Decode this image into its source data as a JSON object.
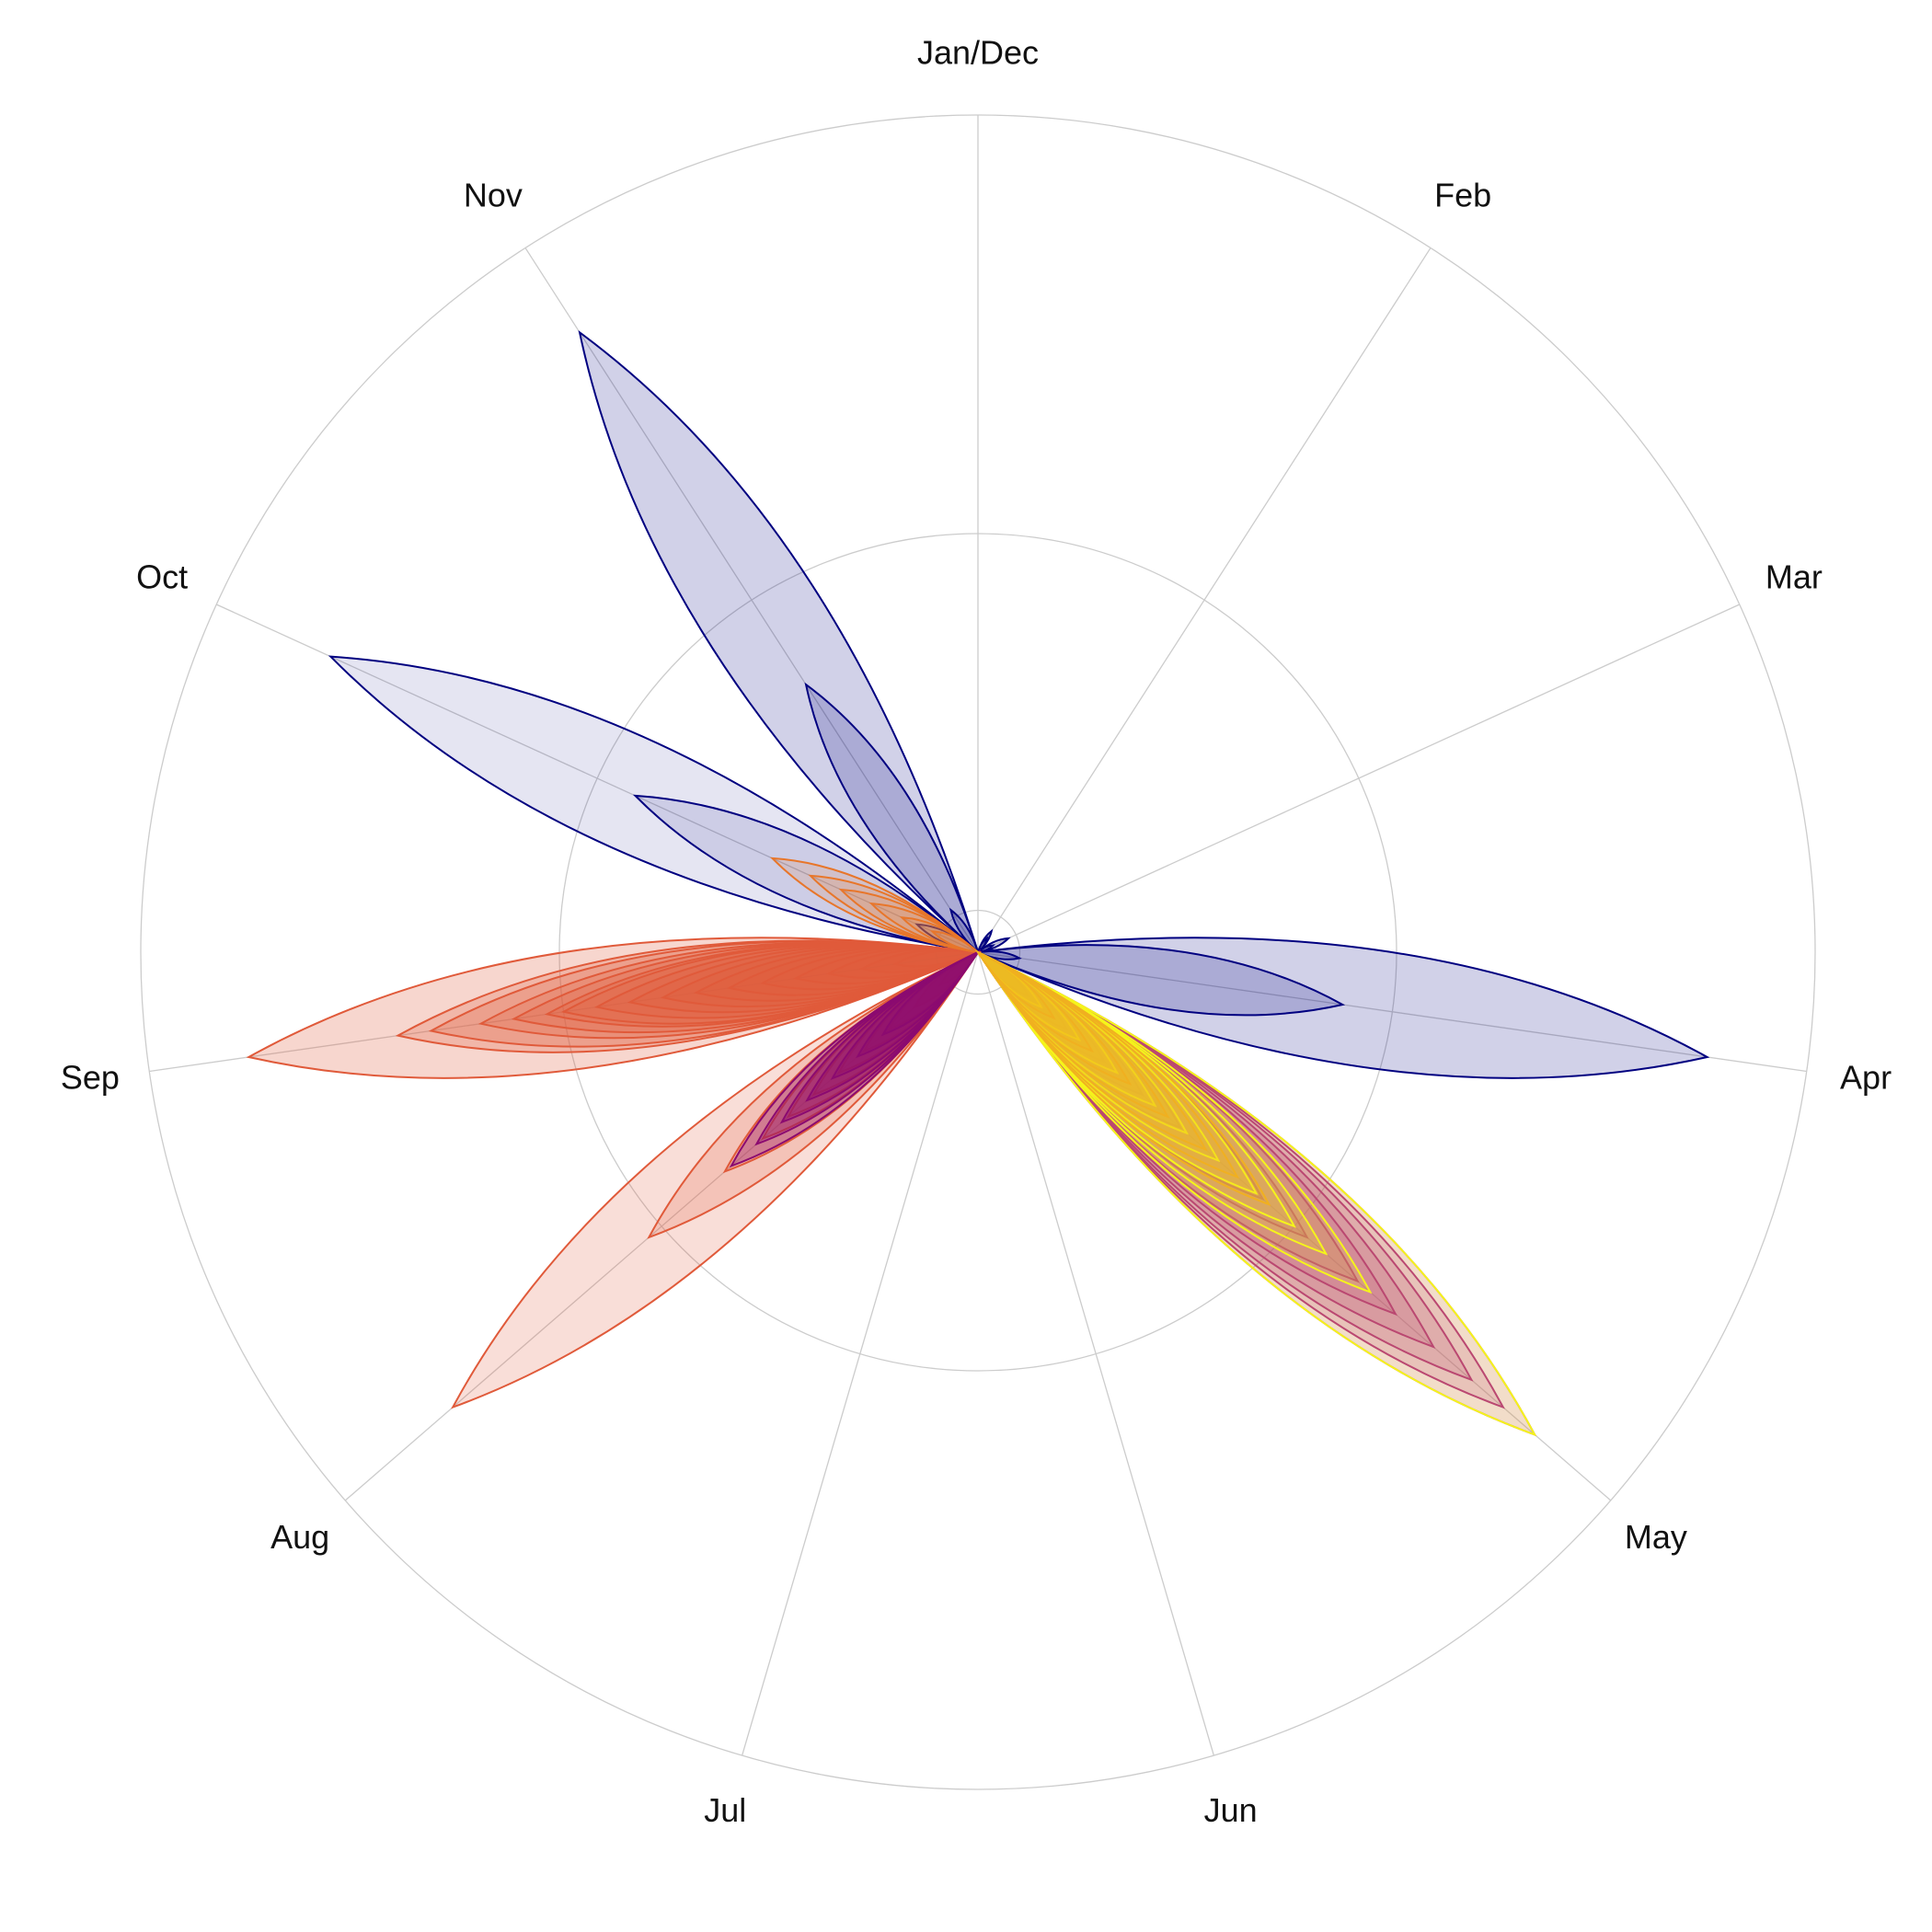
{
  "chart_data": {
    "type": "polar-petal",
    "title": "",
    "axis_labels": [
      "Jan/Dec",
      "Feb",
      "Mar",
      "Apr",
      "May",
      "Jun",
      "Jul",
      "Aug",
      "Sep",
      "Oct",
      "Nov"
    ],
    "rlim": [
      0,
      100
    ],
    "rings": [
      5,
      50,
      100
    ],
    "grid": true,
    "legend": "none",
    "colors": {
      "navy": "#000080",
      "purple": "#8b0a70",
      "magenta": "#b02a80",
      "red": "#e05a3a",
      "orange": "#e8762a",
      "gold": "#f0b020",
      "yellow": "#f5f51a"
    },
    "series": [
      {
        "month": "Apr",
        "values": [
          88,
          44,
          5
        ],
        "color": "#000080",
        "fill_opacity": 0.18
      },
      {
        "month": "Nov",
        "values": [
          88,
          38,
          6
        ],
        "color": "#000080",
        "fill_opacity": 0.18
      },
      {
        "month": "Oct",
        "values": [
          85,
          45,
          8
        ],
        "color": "#000080",
        "fill_opacity": 0.1
      },
      {
        "month": "Feb",
        "values": [
          3,
          2
        ],
        "color": "#000080",
        "fill_opacity": 0.15
      },
      {
        "month": "Mar",
        "values": [
          4,
          2
        ],
        "color": "#000080",
        "fill_opacity": 0.15
      },
      {
        "month": "Sep",
        "values": [
          88,
          70,
          66,
          60,
          56,
          52,
          50,
          46,
          42,
          38,
          34,
          30,
          26,
          22,
          18,
          14,
          10
        ],
        "color": "#e05a3a",
        "fill_opacity": 0.25
      },
      {
        "month": "Oct",
        "values": [
          27,
          22,
          18,
          14,
          10,
          6
        ],
        "color": "#e8762a",
        "fill_opacity": 0.15
      },
      {
        "month": "Aug",
        "values": [
          83,
          52,
          40,
          34,
          30,
          26,
          22,
          18,
          14,
          10,
          6
        ],
        "color": "#e05a3a",
        "fill_opacity": 0.2
      },
      {
        "month": "Aug",
        "values": [
          39,
          35,
          31,
          27,
          23,
          19,
          15
        ],
        "color": "#8b0a70",
        "fill_opacity": 0.3
      },
      {
        "month": "May",
        "values": [
          88,
          83,
          78,
          72,
          66,
          60,
          52,
          45,
          38,
          32,
          26,
          20,
          14,
          8
        ],
        "color": "#b02a80",
        "fill_opacity": 0.18
      },
      {
        "month": "May",
        "values": [
          88,
          62,
          55,
          50,
          44,
          38,
          33,
          28,
          22,
          16,
          10
        ],
        "color": "#f5f51a",
        "fill_opacity": 0.15
      },
      {
        "month": "May",
        "values": [
          46,
          41,
          36,
          30,
          24,
          18,
          12
        ],
        "color": "#f0b020",
        "fill_opacity": 0.15
      }
    ]
  }
}
